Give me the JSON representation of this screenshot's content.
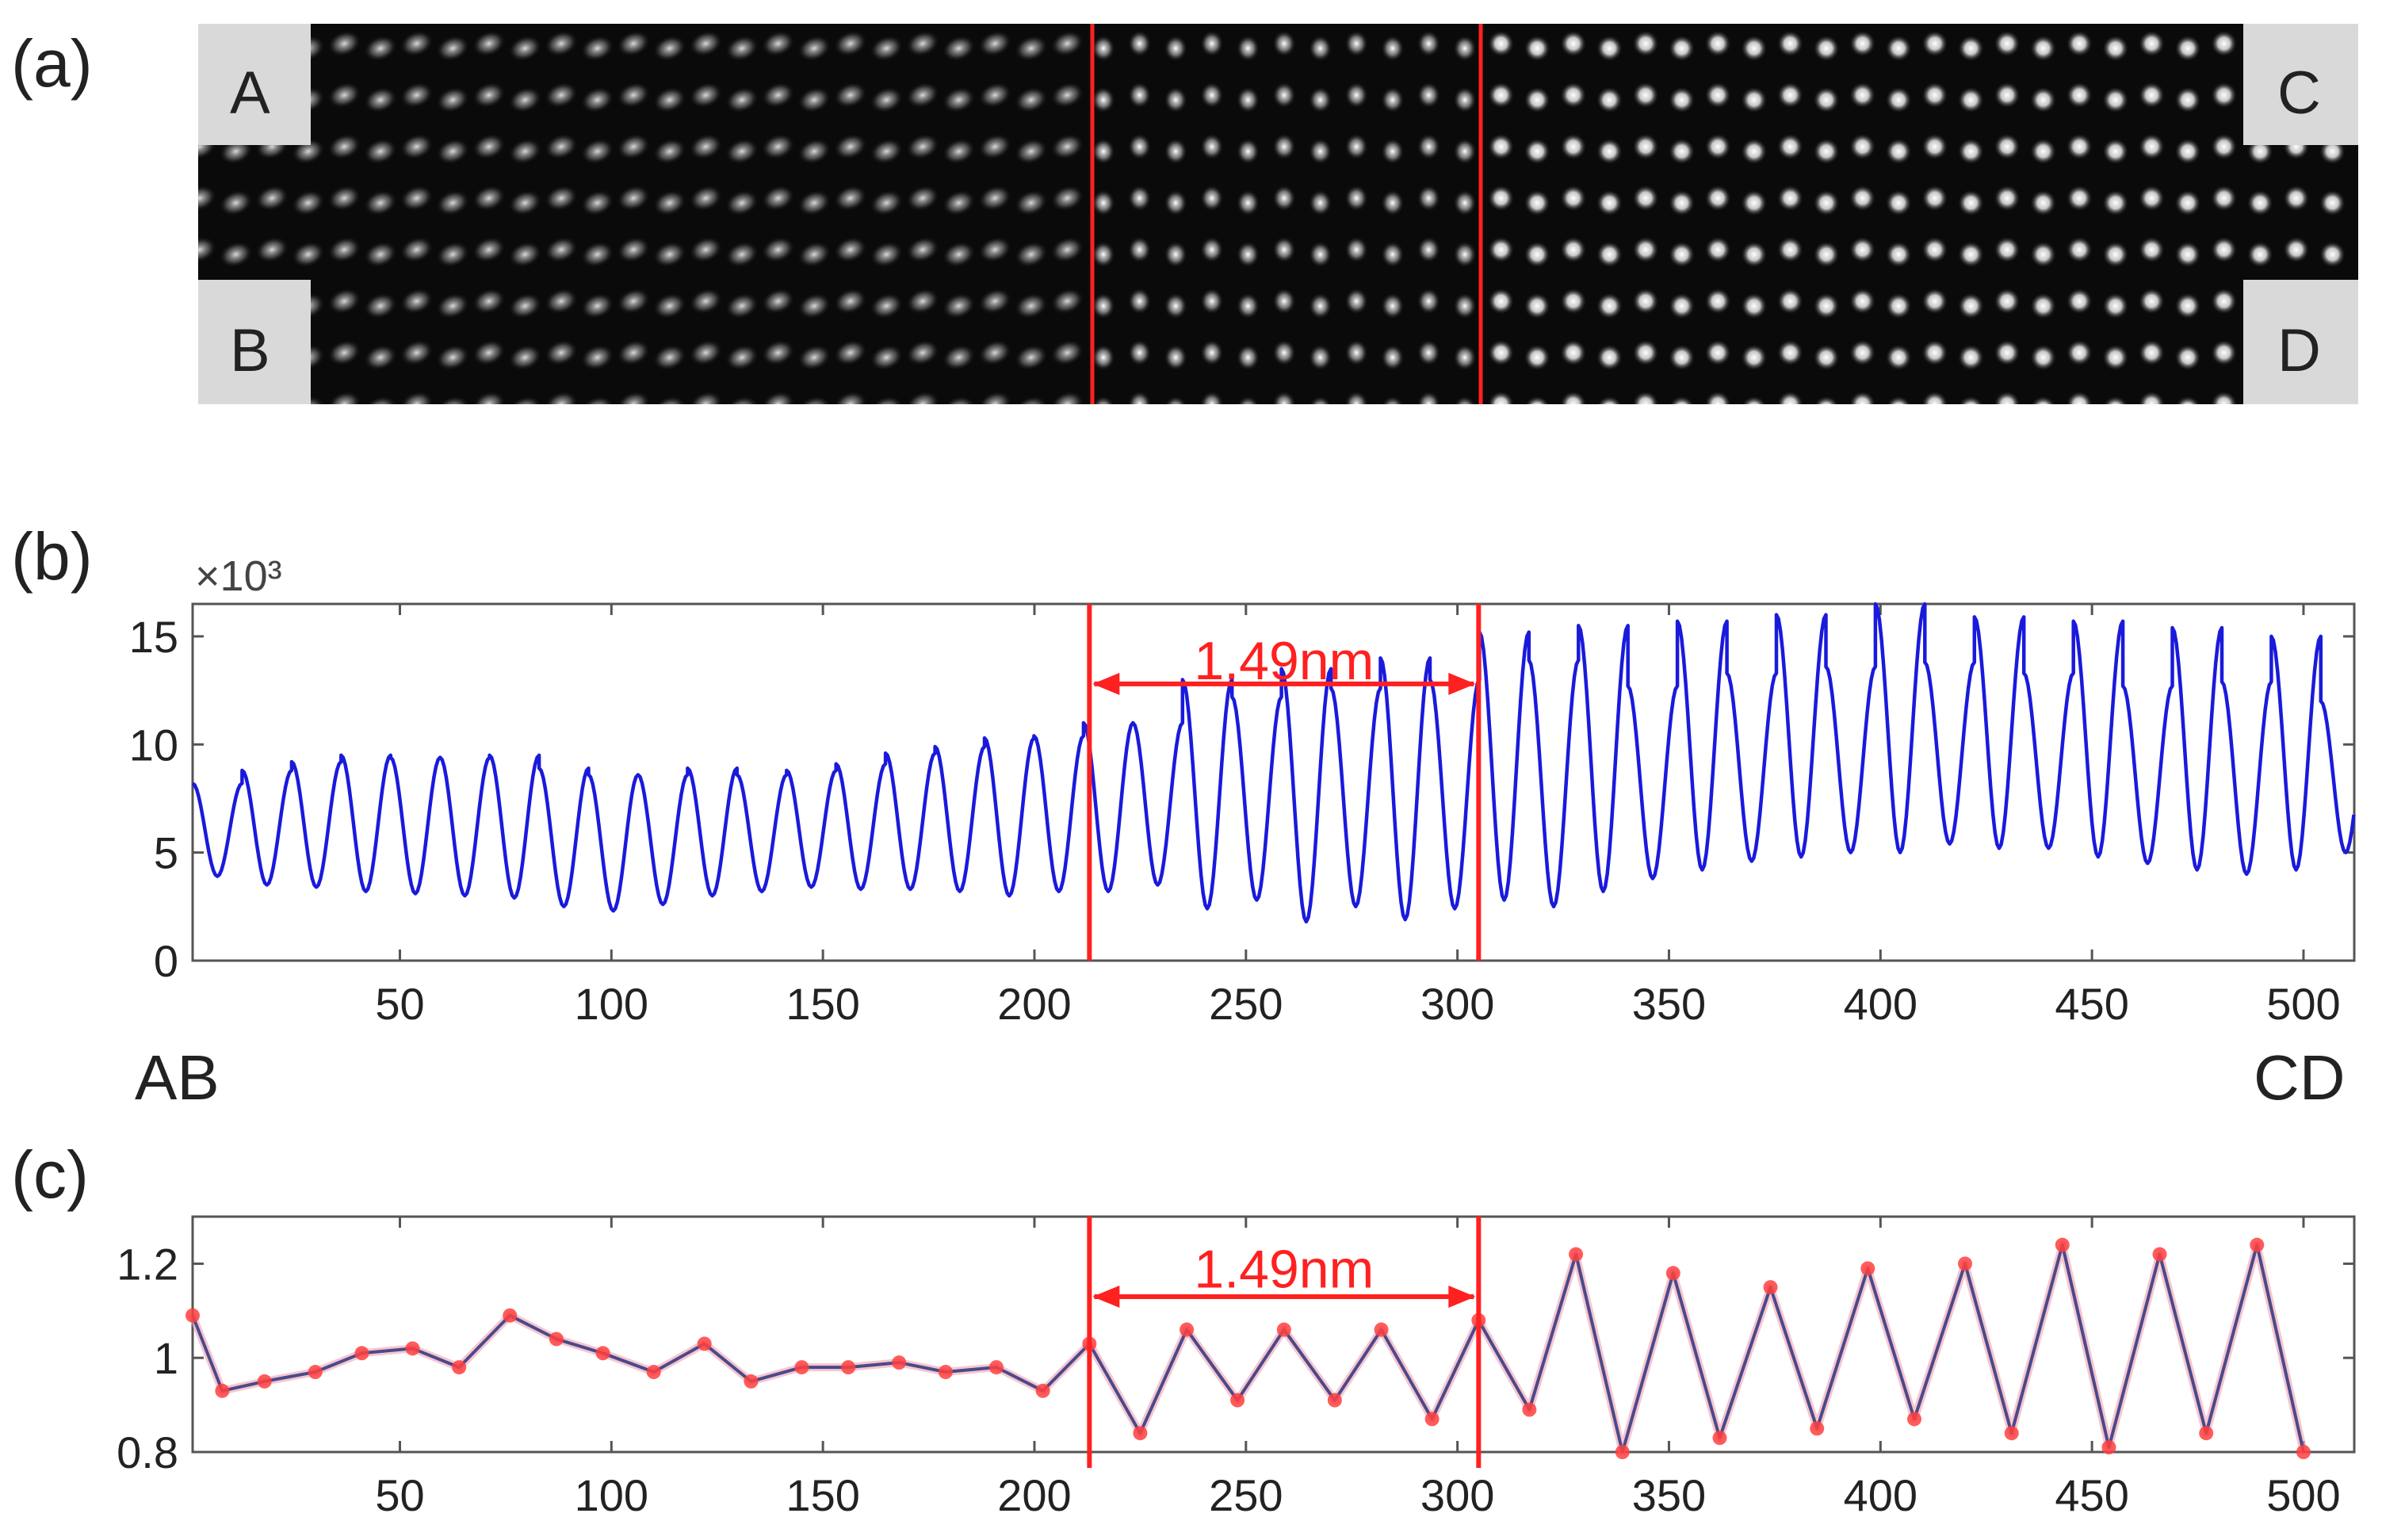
{
  "panels": {
    "a": {
      "label": "(a)"
    },
    "b": {
      "label": "(b)"
    },
    "c": {
      "label": "(c)"
    }
  },
  "image_a": {
    "corner_labels": {
      "top_left": "A",
      "bottom_left": "B",
      "top_right": "C",
      "bottom_right": "D"
    },
    "boundary_color": "#ff2020",
    "content": "atomic-resolution lattice image"
  },
  "end_labels": {
    "left": "AB",
    "right": "CD"
  },
  "colors": {
    "curve": "#1a1adc",
    "marker": "#ff4040",
    "highlight": "#ff2020",
    "axis": "#555555"
  },
  "chart_data": [
    {
      "id": "b",
      "type": "line",
      "exponent_label": "×10³",
      "xlim": [
        1,
        512
      ],
      "ylim": [
        0,
        16.5
      ],
      "xticks": [
        50,
        100,
        150,
        200,
        250,
        300,
        350,
        400,
        450,
        500
      ],
      "yticks": [
        0,
        5,
        10,
        15
      ],
      "period": 11.7,
      "x_start": 1,
      "peak_values": [
        8.2,
        8.8,
        9.2,
        9.5,
        9.4,
        9.4,
        9.5,
        8.9,
        8.6,
        8.6,
        8.9,
        8.6,
        8.8,
        9.1,
        9.6,
        9.9,
        10.3,
        10.4,
        11.0,
        11.0,
        13.0,
        12.2,
        13.5,
        12.6,
        14.0,
        13.0,
        15.2,
        13.9,
        15.5,
        12.7,
        15.7,
        13.3,
        16.0,
        13.6,
        16.5,
        13.8,
        15.9,
        13.3,
        15.7,
        12.7,
        15.4,
        12.9,
        15.0,
        12.0,
        15.1
      ],
      "trough_values": [
        3.9,
        3.5,
        3.4,
        3.2,
        3.1,
        3.0,
        2.9,
        2.5,
        2.3,
        2.6,
        3.0,
        3.2,
        3.4,
        3.3,
        3.3,
        3.2,
        3.0,
        3.2,
        3.2,
        3.5,
        2.4,
        2.8,
        1.8,
        2.5,
        1.9,
        2.4,
        2.8,
        2.5,
        3.2,
        3.8,
        4.2,
        4.6,
        4.8,
        5.0,
        5.0,
        5.4,
        5.2,
        5.2,
        4.8,
        4.5,
        4.2,
        4.0,
        4.2,
        5.0,
        5.2
      ],
      "boundaries": [
        213,
        305
      ],
      "annotation": {
        "text": "1.49nm",
        "from": 213,
        "to": 305,
        "y": 12.8,
        "text_y": 13.9
      }
    },
    {
      "id": "c",
      "type": "line",
      "xlim": [
        1,
        512
      ],
      "ylim": [
        0.8,
        1.3
      ],
      "xticks": [
        50,
        100,
        150,
        200,
        250,
        300,
        350,
        400,
        450,
        500
      ],
      "yticks": [
        0.8,
        1,
        1.2
      ],
      "ytick_labels": [
        "0.8",
        "1",
        "1.2"
      ],
      "x": [
        1,
        8,
        18,
        30,
        41,
        53,
        64,
        76,
        87,
        98,
        110,
        122,
        133,
        145,
        156,
        168,
        179,
        191,
        202,
        213,
        225,
        236,
        248,
        259,
        271,
        282,
        294,
        305,
        317,
        328,
        339,
        351,
        362,
        374,
        385,
        397,
        408,
        420,
        431,
        443,
        454,
        466,
        477,
        489,
        500
      ],
      "values": [
        1.09,
        0.93,
        0.95,
        0.97,
        1.01,
        1.02,
        0.98,
        1.09,
        1.04,
        1.01,
        0.97,
        1.03,
        0.95,
        0.98,
        0.98,
        0.99,
        0.97,
        0.98,
        0.93,
        1.03,
        0.84,
        1.06,
        0.91,
        1.06,
        0.91,
        1.06,
        0.87,
        1.08,
        0.89,
        1.22,
        0.8,
        1.18,
        0.83,
        1.15,
        0.85,
        1.19,
        0.87,
        1.2,
        0.84,
        1.24,
        0.81,
        1.22,
        0.84,
        1.24,
        0.8
      ],
      "boundaries": [
        213,
        305
      ],
      "annotation": {
        "text": "1.49nm",
        "from": 213,
        "to": 305,
        "y": 1.13,
        "text_y": 1.19
      }
    }
  ]
}
